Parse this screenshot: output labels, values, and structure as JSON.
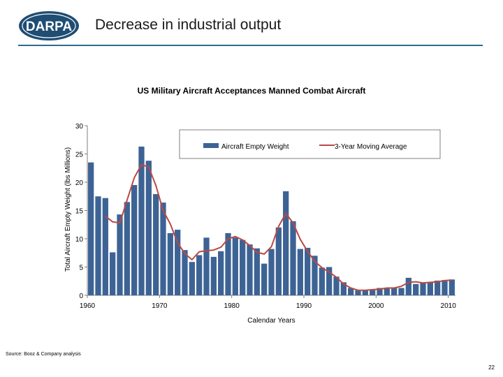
{
  "slide": {
    "title": "Decrease in industrial output",
    "source": "Source: Booz & Company analysis",
    "page_number": "22",
    "logo_text": "DARPA"
  },
  "colors": {
    "bar": "#3d6395",
    "line": "#b84a45",
    "rule": "#2d6b8c",
    "logo_fill": "#1f4d73"
  },
  "chart_data": {
    "type": "bar",
    "title": "US Military Aircraft Acceptances Manned Combat Aircraft",
    "xlabel": "Calendar Years",
    "ylabel": "Total Aircraft Empty Weight (lbs Millions)",
    "ylim": [
      0,
      30
    ],
    "yticks": [
      0,
      5,
      10,
      15,
      20,
      25,
      30
    ],
    "xticks": [
      1960,
      1970,
      1980,
      1990,
      2000,
      2010
    ],
    "legend_position": "top-right",
    "categories": [
      1960,
      1961,
      1962,
      1963,
      1964,
      1965,
      1966,
      1967,
      1968,
      1969,
      1970,
      1971,
      1972,
      1973,
      1974,
      1975,
      1976,
      1977,
      1978,
      1979,
      1980,
      1981,
      1982,
      1983,
      1984,
      1985,
      1986,
      1987,
      1988,
      1989,
      1990,
      1991,
      1992,
      1993,
      1994,
      1995,
      1996,
      1997,
      1998,
      1999,
      2000,
      2001,
      2002,
      2003,
      2004,
      2005,
      2006,
      2007,
      2008,
      2009,
      2010
    ],
    "series": [
      {
        "name": "Aircraft Empty Weight",
        "type": "bar",
        "values": [
          23.5,
          17.5,
          17.2,
          7.6,
          14.3,
          16.5,
          19.5,
          26.3,
          23.8,
          17.9,
          16.4,
          11.0,
          11.6,
          8.0,
          5.9,
          7.1,
          10.2,
          6.8,
          7.8,
          11.0,
          10.2,
          9.8,
          9.0,
          8.3,
          5.6,
          8.2,
          12.0,
          18.4,
          13.1,
          8.2,
          8.4,
          7.0,
          4.9,
          5.0,
          3.3,
          2.3,
          1.3,
          0.9,
          0.9,
          1.0,
          1.3,
          1.2,
          1.4,
          1.3,
          3.1,
          2.0,
          2.2,
          2.3,
          2.6,
          2.7,
          2.8
        ]
      },
      {
        "name": "3-Year Moving Average",
        "type": "line",
        "values": [
          null,
          null,
          14.0,
          13.0,
          12.8,
          16.8,
          20.8,
          23.1,
          22.7,
          19.4,
          15.0,
          12.6,
          9.3,
          7.4,
          6.3,
          7.7,
          7.9,
          8.0,
          8.5,
          10.0,
          10.4,
          9.8,
          8.8,
          7.6,
          7.3,
          8.6,
          12.2,
          14.5,
          12.8,
          9.9,
          7.8,
          6.0,
          4.9,
          4.1,
          3.2,
          2.0,
          1.3,
          0.9,
          0.9,
          1.0,
          1.1,
          1.3,
          1.3,
          1.6,
          2.3,
          2.4,
          2.2,
          2.3,
          2.4,
          2.6,
          2.7
        ]
      }
    ]
  }
}
